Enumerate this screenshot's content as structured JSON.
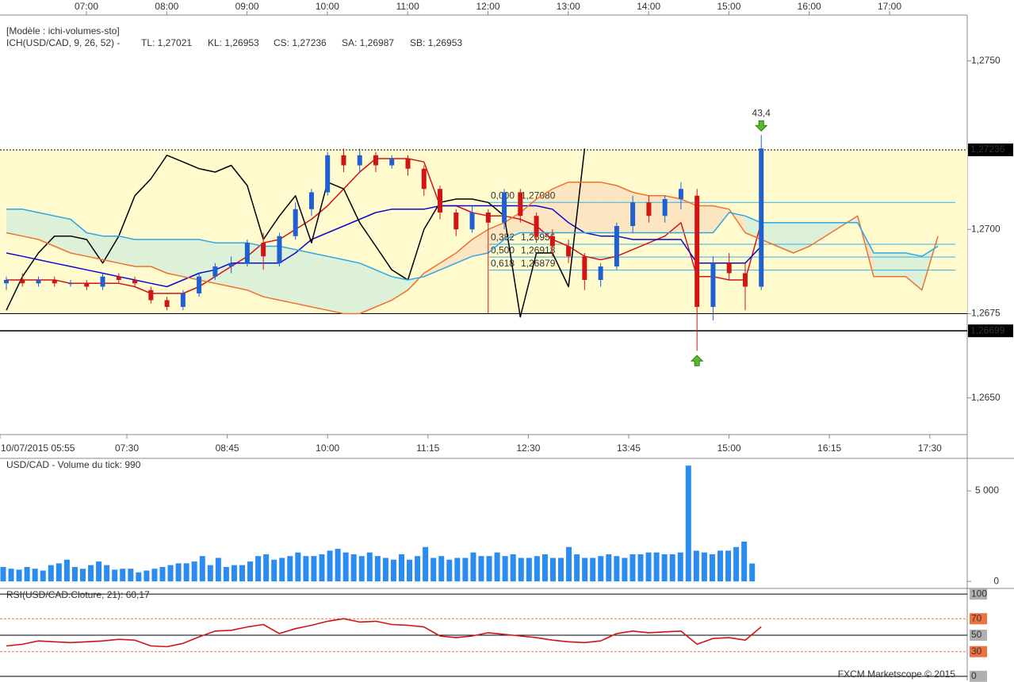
{
  "chart_data": [
    {
      "type": "candlestick",
      "legend_title": "[Modèle : ichi-volumes-sto]",
      "indicator": "ICH(USD/CAD, 9, 26, 52) -",
      "top_labels": [
        "07:00",
        "08:00",
        "09:00",
        "10:00",
        "11:00",
        "12:00",
        "13:00",
        "14:00",
        "15:00",
        "16:00",
        "17:00"
      ],
      "bottom_labels": [
        "10/07/2015 05:55",
        "07:30",
        "08:45",
        "10:00",
        "11:15",
        "12:30",
        "13:45",
        "15:00",
        "16:15",
        "17:30"
      ],
      "up_color": "#1f5fd0",
      "down_color": "#d01515",
      "candles": [
        [
          1.2684,
          1.2686,
          1.2682,
          1.2685
        ],
        [
          1.2685,
          1.2687,
          1.2683,
          1.2684
        ],
        [
          1.2684,
          1.2686,
          1.2683,
          1.2685
        ],
        [
          1.2685,
          1.2686,
          1.2683,
          1.2684
        ],
        [
          1.2684,
          1.2685,
          1.2683,
          1.2684
        ],
        [
          1.2684,
          1.2685,
          1.2682,
          1.2683
        ],
        [
          1.2683,
          1.2687,
          1.2682,
          1.2686
        ],
        [
          1.2686,
          1.2687,
          1.2684,
          1.2685
        ],
        [
          1.2685,
          1.2686,
          1.2683,
          1.2684
        ],
        [
          1.2682,
          1.2683,
          1.2678,
          1.2679
        ],
        [
          1.2679,
          1.268,
          1.2676,
          1.2677
        ],
        [
          1.2677,
          1.2682,
          1.2676,
          1.2681
        ],
        [
          1.2681,
          1.2687,
          1.268,
          1.2686
        ],
        [
          1.2686,
          1.269,
          1.2685,
          1.2689
        ],
        [
          1.2689,
          1.2692,
          1.2687,
          1.269
        ],
        [
          1.269,
          1.2697,
          1.2689,
          1.2696
        ],
        [
          1.2696,
          1.2699,
          1.2688,
          1.2692
        ],
        [
          1.269,
          1.2699,
          1.2689,
          1.2698
        ],
        [
          1.2698,
          1.2708,
          1.2697,
          1.2706
        ],
        [
          1.2706,
          1.2712,
          1.2704,
          1.2711
        ],
        [
          1.2711,
          1.2723,
          1.271,
          1.2722
        ],
        [
          1.2722,
          1.2724,
          1.2717,
          1.2719
        ],
        [
          1.2719,
          1.2724,
          1.2717,
          1.2722
        ],
        [
          1.2722,
          1.2723,
          1.2717,
          1.2719
        ],
        [
          1.2719,
          1.2722,
          1.2718,
          1.2721
        ],
        [
          1.2721,
          1.2722,
          1.2716,
          1.2718
        ],
        [
          1.2718,
          1.2719,
          1.271,
          1.2712
        ],
        [
          1.2712,
          1.2713,
          1.2703,
          1.2705
        ],
        [
          1.2705,
          1.2706,
          1.2698,
          1.27
        ],
        [
          1.27,
          1.2707,
          1.2699,
          1.2705
        ],
        [
          1.2705,
          1.2706,
          1.2675,
          1.2702
        ],
        [
          1.2702,
          1.2712,
          1.27,
          1.2711
        ],
        [
          1.2711,
          1.2712,
          1.2702,
          1.2704
        ],
        [
          1.2704,
          1.2705,
          1.2696,
          1.2698
        ],
        [
          1.2698,
          1.27,
          1.2692,
          1.2695
        ],
        [
          1.2695,
          1.2697,
          1.269,
          1.2692
        ],
        [
          1.2692,
          1.2693,
          1.2682,
          1.2685
        ],
        [
          1.2685,
          1.269,
          1.2683,
          1.2689
        ],
        [
          1.2689,
          1.2702,
          1.2688,
          1.2701
        ],
        [
          1.2701,
          1.271,
          1.2699,
          1.2708
        ],
        [
          1.2708,
          1.271,
          1.2702,
          1.2704
        ],
        [
          1.2704,
          1.271,
          1.2702,
          1.2709
        ],
        [
          1.2709,
          1.2714,
          1.2706,
          1.2712
        ],
        [
          1.271,
          1.2712,
          1.2664,
          1.2677
        ],
        [
          1.2677,
          1.2692,
          1.2673,
          1.269
        ],
        [
          1.269,
          1.2693,
          1.2685,
          1.2687
        ],
        [
          1.2687,
          1.269,
          1.2676,
          1.2683
        ],
        [
          1.2683,
          1.2728,
          1.2682,
          1.2724
        ],
        null,
        null,
        null,
        null,
        null,
        null,
        null,
        null,
        null,
        null,
        null,
        null
      ],
      "series": [
        {
          "name": "TL: 1,27021",
          "color": "#d01515",
          "values": [
            1.2685,
            1.2685,
            1.2685,
            1.2685,
            1.2684,
            1.2684,
            1.2684,
            1.2684,
            1.2683,
            1.2681,
            1.2681,
            1.2681,
            1.2683,
            1.2686,
            1.2689,
            1.2692,
            1.2696,
            1.2697,
            1.27,
            1.2703,
            1.2707,
            1.2712,
            1.2717,
            1.2721,
            1.2721,
            1.2721,
            1.272,
            1.2707,
            1.2707,
            1.2705,
            1.2704,
            1.2704,
            1.2703,
            1.2701,
            1.2697,
            1.2695,
            1.2692,
            1.2691,
            1.2692,
            1.2694,
            1.2696,
            1.2698,
            1.2702,
            1.2686,
            1.2686,
            1.2685,
            1.2685,
            1.2702,
            null,
            null,
            null,
            null,
            null,
            null,
            null,
            null,
            null,
            null,
            null,
            null
          ]
        },
        {
          "name": "KL: 1,26953",
          "color": "#0a0ad0",
          "values": [
            1.2693,
            1.2692,
            1.2691,
            1.269,
            1.2689,
            1.2688,
            1.2687,
            1.2686,
            1.2685,
            1.2684,
            1.2683,
            1.2685,
            1.2687,
            1.2688,
            1.269,
            1.269,
            1.269,
            1.269,
            1.2693,
            1.2697,
            1.2699,
            1.2701,
            1.2703,
            1.2705,
            1.2706,
            1.2706,
            1.2706,
            1.2707,
            1.2707,
            1.2707,
            1.2707,
            1.2707,
            1.2707,
            1.2707,
            1.2706,
            1.2702,
            1.2699,
            1.2698,
            1.2698,
            1.2697,
            1.2697,
            1.2697,
            1.2697,
            1.269,
            1.269,
            1.269,
            1.269,
            1.2695,
            null,
            null,
            null,
            null,
            null,
            null,
            null,
            null,
            null,
            null,
            null,
            null
          ]
        },
        {
          "name": "CS: 1,27236",
          "color": "#000000",
          "values": [
            1.2676,
            1.2686,
            1.2693,
            1.2698,
            1.2698,
            1.2697,
            1.269,
            1.2698,
            1.271,
            1.2715,
            1.2722,
            1.272,
            1.2718,
            1.2717,
            1.2719,
            1.2713,
            1.2697,
            1.2704,
            1.271,
            1.2696,
            1.2714,
            1.2712,
            1.2702,
            1.2695,
            1.2688,
            1.2685,
            1.27,
            1.2708,
            1.2709,
            1.2709,
            1.2708,
            1.2704,
            1.2674,
            1.2693,
            1.2693,
            1.2683,
            1.2724,
            null,
            null,
            null,
            null,
            null,
            null,
            null,
            null,
            null,
            null,
            null,
            null,
            null,
            null,
            null,
            null,
            null,
            null,
            null,
            null,
            null,
            null,
            null
          ]
        },
        {
          "name": "SA: 1,26987",
          "color": "#f07030",
          "values": [
            1.2699,
            1.2698,
            1.2697,
            1.2695,
            1.2693,
            1.2692,
            1.2691,
            1.269,
            1.2689,
            1.2689,
            1.2687,
            1.2686,
            1.2685,
            1.2684,
            1.2683,
            1.2682,
            1.268,
            1.2679,
            1.2678,
            1.2677,
            1.2676,
            1.2675,
            1.2675,
            1.2677,
            1.2679,
            1.2682,
            1.2687,
            1.269,
            1.2693,
            1.2697,
            1.27,
            1.2702,
            1.2705,
            1.2709,
            1.2712,
            1.2714,
            1.2714,
            1.2714,
            1.2713,
            1.2711,
            1.271,
            1.271,
            1.2709,
            1.2707,
            1.2707,
            1.2706,
            1.2699,
            1.2697,
            1.2695,
            1.2693,
            1.2695,
            1.2698,
            1.2701,
            1.2704,
            1.2686,
            1.2686,
            1.2686,
            1.2682,
            1.2698,
            null
          ]
        },
        {
          "name": "SB: 1,26953",
          "color": "#28a8e8",
          "values": [
            1.2706,
            1.2706,
            1.2705,
            1.2704,
            1.2703,
            1.2699,
            1.2698,
            1.2698,
            1.2697,
            1.2697,
            1.2697,
            1.2697,
            1.2697,
            1.2696,
            1.2696,
            1.2696,
            1.2695,
            1.2695,
            1.2694,
            1.2693,
            1.2692,
            1.2691,
            1.269,
            1.2688,
            1.2686,
            1.2685,
            1.2686,
            1.2688,
            1.269,
            1.2692,
            1.2693,
            1.2697,
            1.2699,
            1.2699,
            1.2699,
            1.2699,
            1.2699,
            1.2699,
            1.2699,
            1.2699,
            1.2699,
            1.2699,
            1.2699,
            1.2699,
            1.2699,
            1.2705,
            1.2704,
            1.2702,
            1.2702,
            1.2702,
            1.2702,
            1.2702,
            1.2702,
            1.2702,
            1.2693,
            1.2693,
            1.2693,
            1.2692,
            1.2695,
            null
          ]
        }
      ],
      "cloud_colors": [
        "#fbe2c0",
        "#d6eed8"
      ],
      "box": {
        "ylim": [
          1.2675,
          1.27236
        ],
        "color": "#fffbcf"
      },
      "levels": [
        {
          "value": 1.27236,
          "label": "1,27236",
          "color": "#000000",
          "label_color": "#00e000",
          "label_bg": "#000000",
          "dashed": true
        },
        {
          "value": 1.26699,
          "label": "1,26699",
          "color": "#000000",
          "label_color": "#ffffff",
          "label_bg": "#000000",
          "dashed": false
        }
      ],
      "fibonacci": [
        {
          "ratio": "0,000",
          "value": 1.2708,
          "label": "1,27080"
        },
        {
          "ratio": "0,382",
          "value": 1.26956,
          "label": "1,26956"
        },
        {
          "ratio": "0,500",
          "value": 1.26918,
          "label": "1,26918"
        },
        {
          "ratio": "0,618",
          "value": 1.26879,
          "label": "1,26879"
        }
      ],
      "annotations": [
        {
          "text": "43,4",
          "candle": 47,
          "direction": "down"
        },
        {
          "candle": 43,
          "direction": "up"
        }
      ],
      "ylim": [
        1.2641,
        1.2761
      ],
      "yticks": [
        {
          "value": 1.265,
          "label": "1,2650"
        },
        {
          "value": 1.2675,
          "label": "1,2675"
        },
        {
          "value": 1.27,
          "label": "1,2700"
        },
        {
          "value": 1.275,
          "label": "1,2750"
        }
      ]
    },
    {
      "type": "bar",
      "title": "USD/CAD - Volume du tick: 990",
      "color": "#2a8cf0",
      "values": [
        800,
        700,
        650,
        800,
        700,
        600,
        900,
        1000,
        1200,
        800,
        700,
        900,
        1100,
        900,
        650,
        700,
        700,
        500,
        600,
        700,
        800,
        900,
        1000,
        1000,
        1100,
        1400,
        900,
        1300,
        800,
        900,
        900,
        1100,
        1400,
        1500,
        1200,
        1300,
        1400,
        1600,
        1400,
        1400,
        1500,
        1700,
        1800,
        1600,
        1500,
        1400,
        1600,
        1400,
        1300,
        1200,
        1500,
        1200,
        1400,
        1900,
        1300,
        1400,
        1200,
        1300,
        1300,
        1600,
        1400,
        1400,
        1600,
        1400,
        1500,
        1300,
        1300,
        1400,
        1500,
        1300,
        1300,
        1900,
        1500,
        1300,
        1300,
        1400,
        1500,
        1400,
        1300,
        1500,
        1500,
        1600,
        1600,
        1500,
        1500,
        1600,
        6400,
        1700,
        1600,
        1500,
        1700,
        1700,
        1900,
        2200,
        990
      ],
      "ylim": [
        -300,
        6800
      ],
      "yticks": [
        {
          "value": 5000,
          "label": "5 000"
        },
        0
      ]
    },
    {
      "type": "line",
      "title": "RSI(USD/CAD.Cloture, 21): 60,17",
      "color": "#d01515",
      "values": [
        37,
        39,
        43,
        42,
        41,
        42,
        43,
        45,
        44,
        37,
        36,
        40,
        48,
        55,
        56,
        60,
        63,
        52,
        58,
        62,
        67,
        70,
        66,
        67,
        63,
        62,
        60,
        49,
        47,
        49,
        53,
        51,
        49,
        47,
        44,
        42,
        41,
        43,
        52,
        55,
        53,
        54,
        55,
        39,
        46,
        47,
        44,
        60.17
      ],
      "ylim": [
        -5,
        104
      ],
      "yticks": [
        100,
        70,
        50,
        30,
        0
      ],
      "tick_colors": [
        "#b0b0b0",
        "#f07040",
        "#b0b0b0",
        "#f07040",
        "#b0b0b0"
      ],
      "tick_line_styles": [
        "solid",
        "dashed",
        "solid",
        "dashed",
        "solid"
      ]
    }
  ],
  "footer": "FXCM Marketscope © 2015"
}
